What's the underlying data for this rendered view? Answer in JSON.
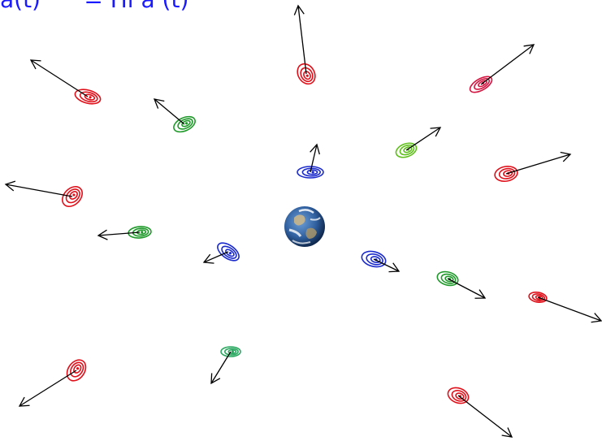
{
  "formula": {
    "text": "a(t)      = Hl a (t)",
    "color": "#1a1aff"
  },
  "earth": {
    "ocean_color": "#2f5f9e",
    "land_color": "#c8b58a",
    "cloud_color": "#ffffff"
  },
  "arrow_color": "#000000",
  "galaxies": [
    {
      "name": "galaxy-red-top",
      "color": "#e0101a",
      "arrow_direction": "up"
    },
    {
      "name": "galaxy-red-upper-left",
      "color": "#e0101a",
      "arrow_direction": "up-left"
    },
    {
      "name": "galaxy-green-upper-left",
      "color": "#1f9a2a",
      "arrow_direction": "up-left"
    },
    {
      "name": "galaxy-red-upper-right",
      "color": "#d41440",
      "arrow_direction": "up-right"
    },
    {
      "name": "galaxy-green-upper-right",
      "color": "#5fbf1a",
      "arrow_direction": "up-right"
    },
    {
      "name": "galaxy-blue-center-top",
      "color": "#1a2acc",
      "arrow_direction": "up"
    },
    {
      "name": "galaxy-red-right",
      "color": "#e0101a",
      "arrow_direction": "right"
    },
    {
      "name": "galaxy-red-left",
      "color": "#e0101a",
      "arrow_direction": "left"
    },
    {
      "name": "galaxy-green-left",
      "color": "#1f9a2a",
      "arrow_direction": "left"
    },
    {
      "name": "galaxy-blue-left",
      "color": "#1a2acc",
      "arrow_direction": "down-left"
    },
    {
      "name": "galaxy-blue-right",
      "color": "#1a2acc",
      "arrow_direction": "right"
    },
    {
      "name": "galaxy-green-right",
      "color": "#1f9a2a",
      "arrow_direction": "down-right"
    },
    {
      "name": "galaxy-red-far-right",
      "color": "#e0101a",
      "arrow_direction": "down-right"
    },
    {
      "name": "galaxy-red-lower-left",
      "color": "#e0101a",
      "arrow_direction": "down-left"
    },
    {
      "name": "galaxy-green-lower-center",
      "color": "#2aa860",
      "arrow_direction": "down-left"
    },
    {
      "name": "galaxy-red-bottom-right",
      "color": "#e0101a",
      "arrow_direction": "down-right"
    }
  ]
}
